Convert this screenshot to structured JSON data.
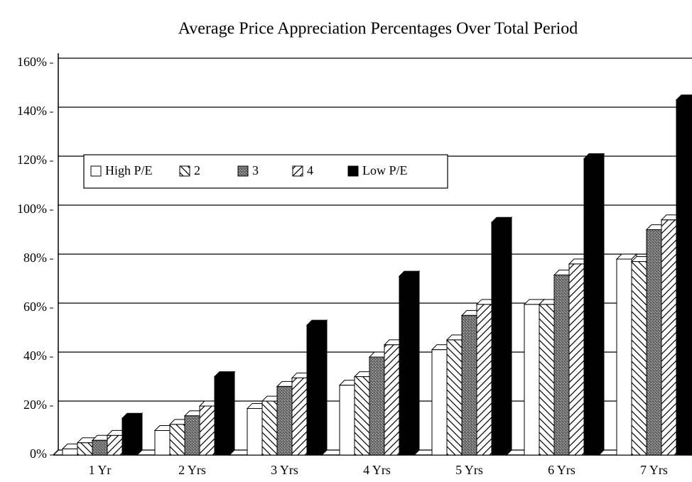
{
  "chart_data": {
    "type": "bar",
    "title": "Average Price Appreciation Percentages Over Total Period",
    "categories": [
      "1 Yr",
      "2 Yrs",
      "3 Yrs",
      "4 Yrs",
      "5 Yrs",
      "6 Yrs",
      "7 Yrs"
    ],
    "series": [
      {
        "name": "High P/E",
        "color": "#ffffff",
        "pattern": "solid",
        "values": [
          2.5,
          10,
          19,
          28.5,
          43,
          61.5,
          80
        ]
      },
      {
        "name": "2",
        "color": "#ffffff",
        "pattern": "hatch-back",
        "values": [
          5,
          12.5,
          22,
          32,
          47,
          61.5,
          79
        ]
      },
      {
        "name": "3",
        "color": "#808080",
        "pattern": "stipple",
        "values": [
          6,
          16,
          28,
          40,
          57,
          73.5,
          92
        ]
      },
      {
        "name": "4",
        "color": "#ffffff",
        "pattern": "hatch-forward",
        "values": [
          8,
          20,
          31.5,
          45,
          61.5,
          78,
          96
        ]
      },
      {
        "name": "Low P/E",
        "color": "#000000",
        "pattern": "solid",
        "values": [
          15,
          32,
          53,
          73,
          95,
          121,
          145
        ]
      }
    ],
    "ylim": [
      0,
      160
    ],
    "yticks": [
      {
        "value": 0,
        "label": "0%"
      },
      {
        "value": 20,
        "label": "20%"
      },
      {
        "value": 40,
        "label": "40%"
      },
      {
        "value": 60,
        "label": "60%"
      },
      {
        "value": 80,
        "label": "80%"
      },
      {
        "value": 100,
        "label": "100%"
      },
      {
        "value": 120,
        "label": "120%"
      },
      {
        "value": 140,
        "label": "140%"
      },
      {
        "value": 160,
        "label": "160%"
      }
    ],
    "grid": true,
    "legend": "top-left"
  }
}
